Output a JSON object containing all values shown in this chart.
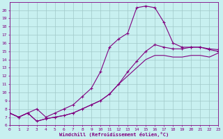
{
  "xlabel": "Windchill (Refroidissement éolien,°C)",
  "bg_color": "#c8f0f0",
  "line_color": "#800080",
  "grid_color": "#a0c8c8",
  "xlim": [
    0,
    23
  ],
  "ylim": [
    6,
    21
  ],
  "xticks": [
    0,
    1,
    2,
    3,
    4,
    5,
    6,
    7,
    8,
    9,
    10,
    11,
    12,
    13,
    14,
    15,
    16,
    17,
    18,
    19,
    20,
    21,
    22,
    23
  ],
  "yticks": [
    6,
    7,
    8,
    9,
    10,
    11,
    12,
    13,
    14,
    15,
    16,
    17,
    18,
    19,
    20
  ],
  "line1_x": [
    0,
    1,
    2,
    3,
    4,
    5,
    6,
    7,
    8,
    9,
    10,
    11,
    12,
    13,
    14,
    15,
    16,
    17,
    18,
    19,
    20,
    21,
    22,
    23
  ],
  "line1_y": [
    7.5,
    7.0,
    7.5,
    8.0,
    7.0,
    7.5,
    8.0,
    8.5,
    9.5,
    10.5,
    12.5,
    15.5,
    16.5,
    17.2,
    20.3,
    20.5,
    20.3,
    18.5,
    16.0,
    15.5,
    15.5,
    15.5,
    15.2,
    15.0
  ],
  "line2_x": [
    0,
    1,
    2,
    3,
    4,
    5,
    6,
    7,
    8,
    9,
    10,
    11,
    12,
    13,
    14,
    15,
    16,
    17,
    18,
    19,
    20,
    21,
    22,
    23
  ],
  "line2_y": [
    7.5,
    7.0,
    7.5,
    6.5,
    6.8,
    7.0,
    7.2,
    7.5,
    8.0,
    8.5,
    9.0,
    9.8,
    11.0,
    12.5,
    13.8,
    15.0,
    15.8,
    15.5,
    15.3,
    15.3,
    15.5,
    15.5,
    15.3,
    15.2
  ],
  "line3_x": [
    0,
    1,
    2,
    3,
    4,
    5,
    6,
    7,
    8,
    9,
    10,
    11,
    12,
    13,
    14,
    15,
    16,
    17,
    18,
    19,
    20,
    21,
    22,
    23
  ],
  "line3_y": [
    7.5,
    7.0,
    7.5,
    6.5,
    6.8,
    7.0,
    7.2,
    7.5,
    8.0,
    8.5,
    9.0,
    9.8,
    11.0,
    12.0,
    13.0,
    14.0,
    14.5,
    14.5,
    14.3,
    14.3,
    14.5,
    14.5,
    14.3,
    14.8
  ],
  "line1_has_marker": true,
  "line2_has_marker": true,
  "line3_has_marker": false,
  "marker": "+",
  "markersize": 3,
  "linewidth": 0.8,
  "axis_fontsize": 5,
  "tick_fontsize": 4.5
}
